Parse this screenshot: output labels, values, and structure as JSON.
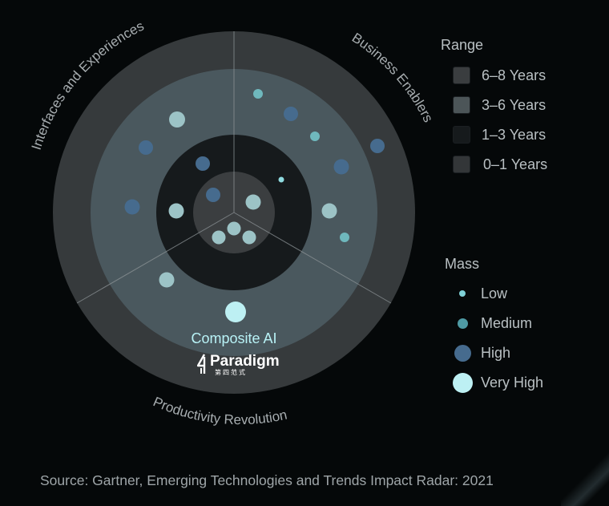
{
  "segments": [
    {
      "label": "Interfaces and Experiences"
    },
    {
      "label": "Business Enablers"
    },
    {
      "label": "Productivity Revolution"
    }
  ],
  "rings": [
    {
      "name": "6–8 Years",
      "color": "#363a3c"
    },
    {
      "name": "3–6 Years",
      "color": "#4a585e"
    },
    {
      "name": "1–3 Years",
      "color": "#161a1c"
    },
    {
      "name": "0–1 Years",
      "color": "#3b3e40"
    }
  ],
  "legend": {
    "range_title": "Range",
    "range_items": [
      {
        "label": "6–8 Years",
        "color": "#3a3d3f"
      },
      {
        "label": "3–6 Years",
        "color": "#4c5558"
      },
      {
        "label": "1–3 Years",
        "color": "#161a1c"
      },
      {
        "label": "0–1 Years",
        "color": "#333638"
      }
    ],
    "mass_title": "Mass",
    "mass_items": [
      {
        "label": "Low",
        "color": "#7fd0d6"
      },
      {
        "label": "Medium",
        "color": "#4e9aa4"
      },
      {
        "label": "High",
        "color": "#466b8e"
      },
      {
        "label": "Very High",
        "color": "#bdf0f3"
      }
    ]
  },
  "highlight": {
    "label": "Composite AI",
    "color": "#b8f2f6"
  },
  "brand": {
    "name": "Paradigm",
    "sub": "第四范式"
  },
  "source": "Source: Gartner, Emerging Technologies and Trends Impact Radar: 2021"
}
